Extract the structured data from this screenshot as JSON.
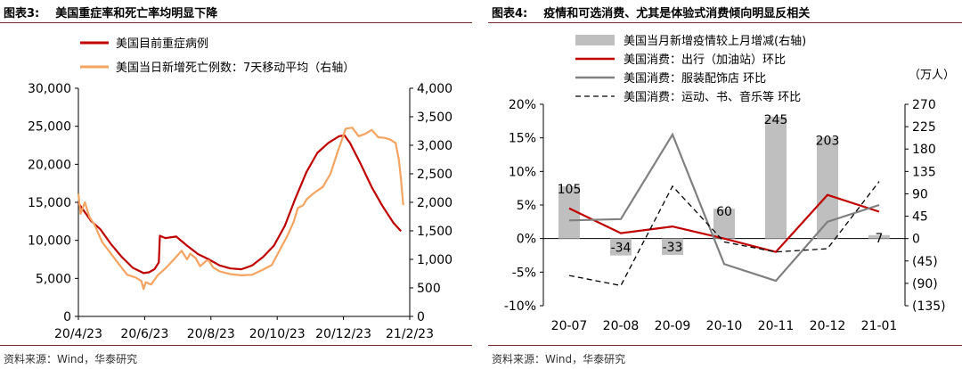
{
  "left": {
    "fig_label": "图表3:",
    "title": "美国重症率和死亡率均明显下降",
    "source": "资料来源：Wind，华泰研究",
    "colors": {
      "severe": "#c00000",
      "deaths": "#f4a460"
    },
    "chart_data": {
      "type": "line",
      "title": "美国重症率和死亡率均明显下降",
      "xlabel": "",
      "ylabel": "",
      "legend_position": "top-left",
      "x_tick_labels": [
        "20/4/23",
        "20/6/23",
        "20/8/23",
        "20/10/23",
        "20/12/23",
        "21/2/23"
      ],
      "x_range": [
        0,
        305
      ],
      "y_left_lim": [
        0,
        30000
      ],
      "y_left_ticks": [
        "0",
        "5,000",
        "10,000",
        "15,000",
        "20,000",
        "25,000",
        "30,000"
      ],
      "y_right_lim": [
        0,
        4000
      ],
      "y_right_ticks": [
        "0",
        "500",
        "1,000",
        "1,500",
        "2,000",
        "2,500",
        "3,000",
        "3,500",
        "4,000"
      ],
      "series": [
        {
          "name": "美国目前重症病例",
          "axis": "left",
          "points": [
            [
              0,
              14900
            ],
            [
              6,
              13700
            ],
            [
              12,
              12500
            ],
            [
              20,
              11500
            ],
            [
              30,
              9500
            ],
            [
              40,
              7800
            ],
            [
              50,
              6400
            ],
            [
              60,
              5700
            ],
            [
              65,
              5800
            ],
            [
              70,
              6200
            ],
            [
              74,
              7100
            ],
            [
              75,
              10600
            ],
            [
              80,
              10300
            ],
            [
              90,
              10500
            ],
            [
              100,
              9300
            ],
            [
              110,
              8200
            ],
            [
              120,
              7500
            ],
            [
              130,
              6700
            ],
            [
              140,
              6300
            ],
            [
              150,
              6200
            ],
            [
              160,
              6700
            ],
            [
              170,
              7800
            ],
            [
              180,
              9300
            ],
            [
              190,
              11900
            ],
            [
              200,
              15600
            ],
            [
              210,
              19000
            ],
            [
              220,
              21500
            ],
            [
              230,
              22800
            ],
            [
              240,
              23700
            ],
            [
              245,
              23800
            ],
            [
              250,
              22800
            ],
            [
              260,
              20000
            ],
            [
              270,
              17000
            ],
            [
              280,
              14500
            ],
            [
              290,
              12300
            ],
            [
              297,
              11200
            ]
          ]
        },
        {
          "name": "美国当日新增死亡例数：7天移动平均（右轴）",
          "axis": "right",
          "points": [
            [
              0,
              2150
            ],
            [
              2,
              1800
            ],
            [
              6,
              2000
            ],
            [
              10,
              1750
            ],
            [
              15,
              1600
            ],
            [
              22,
              1300
            ],
            [
              30,
              1100
            ],
            [
              38,
              900
            ],
            [
              45,
              730
            ],
            [
              53,
              680
            ],
            [
              58,
              620
            ],
            [
              60,
              480
            ],
            [
              62,
              600
            ],
            [
              67,
              560
            ],
            [
              73,
              720
            ],
            [
              80,
              840
            ],
            [
              88,
              1000
            ],
            [
              95,
              1150
            ],
            [
              100,
              1000
            ],
            [
              103,
              1100
            ],
            [
              108,
              1020
            ],
            [
              112,
              880
            ],
            [
              118,
              980
            ],
            [
              120,
              980
            ],
            [
              124,
              860
            ],
            [
              130,
              790
            ],
            [
              140,
              740
            ],
            [
              150,
              720
            ],
            [
              160,
              730
            ],
            [
              170,
              820
            ],
            [
              178,
              900
            ],
            [
              185,
              1150
            ],
            [
              192,
              1400
            ],
            [
              198,
              1650
            ],
            [
              202,
              1900
            ],
            [
              207,
              1950
            ],
            [
              210,
              2050
            ],
            [
              216,
              2150
            ],
            [
              225,
              2270
            ],
            [
              232,
              2500
            ],
            [
              238,
              2850
            ],
            [
              243,
              3120
            ],
            [
              246,
              3290
            ],
            [
              252,
              3310
            ],
            [
              258,
              3160
            ],
            [
              264,
              3200
            ],
            [
              270,
              3270
            ],
            [
              276,
              3140
            ],
            [
              282,
              3130
            ],
            [
              287,
              3100
            ],
            [
              292,
              3040
            ],
            [
              295,
              2750
            ],
            [
              297,
              2400
            ],
            [
              299,
              1950
            ]
          ]
        }
      ]
    }
  },
  "right": {
    "fig_label": "图表4:",
    "title": "疫情和可选消费、尤其是体验式消费倾向明显反相关",
    "source": "资料来源：Wind，华泰研究",
    "right_axis_unit": "（万人）",
    "colors": {
      "bars": "#bfbfbf",
      "fuel": "#c00000",
      "apparel": "#808080",
      "leisure": "#000000"
    },
    "chart_data": {
      "type": "bar",
      "title": "疫情和可选消费、尤其是体验式消费倾向明显反相关",
      "legend_position": "top-left",
      "categories": [
        "20-07",
        "20-08",
        "20-09",
        "20-10",
        "20-11",
        "20-12",
        "21-01"
      ],
      "y_left_lim": [
        -10,
        20
      ],
      "y_left_ticks": [
        "-10%",
        "-5%",
        "0%",
        "5%",
        "10%",
        "15%",
        "20%"
      ],
      "y_right_lim": [
        -135,
        270
      ],
      "y_right_ticks": [
        "(135)",
        "(90)",
        "(45)",
        "0",
        "45",
        "90",
        "135",
        "180",
        "225",
        "270"
      ],
      "series": [
        {
          "name": "美国当月新增疫情较上月增减(右轴)",
          "kind": "bar",
          "axis": "right",
          "values": [
            105,
            -34,
            -33,
            60,
            245,
            203,
            7
          ],
          "data_labels": [
            "105",
            "-34",
            "-33",
            "60",
            "245",
            "203",
            "7"
          ]
        },
        {
          "name": "美国消费：出行（加油站）环比",
          "kind": "line",
          "axis": "left",
          "values": [
            4.5,
            0.8,
            1.8,
            0.0,
            -2.0,
            6.5,
            4.0
          ]
        },
        {
          "name": "美国消费：服装配饰店 环比",
          "kind": "line",
          "axis": "left",
          "values": [
            2.7,
            2.9,
            15.5,
            -3.8,
            -6.3,
            2.5,
            5.0
          ]
        },
        {
          "name": "美国消费：运动、书、音乐等 环比",
          "kind": "dashed-line",
          "axis": "left",
          "values": [
            -5.5,
            -7.0,
            7.8,
            -0.5,
            -2.0,
            -1.5,
            8.5
          ]
        }
      ]
    }
  }
}
